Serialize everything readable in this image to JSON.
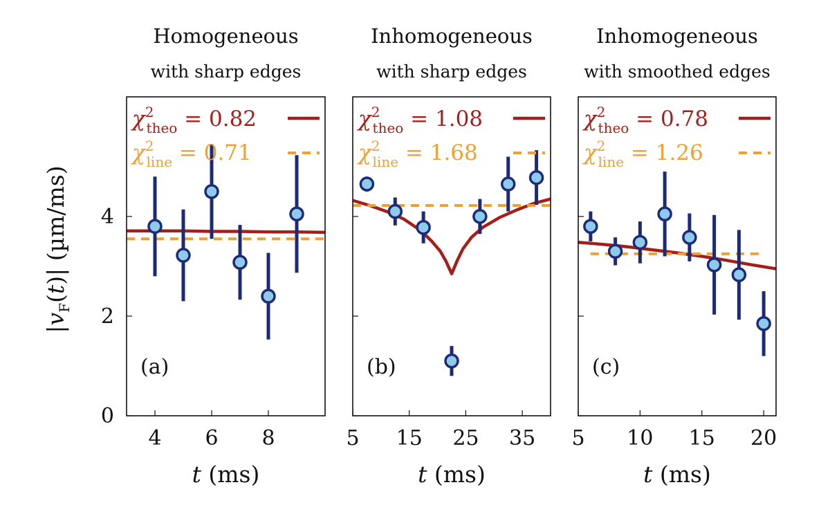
{
  "colors": {
    "theory": "#a51f1a",
    "linear": "#f0a030",
    "marker_fill": "#8ecae9",
    "marker_edge": "#1c2a78",
    "errorbar": "#1c2a78",
    "frame": "#111111"
  },
  "shared": {
    "ylabel": "|v_F(t)| (µm/ms)",
    "ylim": [
      0,
      6.4
    ],
    "yticks": [
      0,
      2,
      4
    ],
    "xlabel": "t (ms)"
  },
  "legend_labels": {
    "theory": "χ²_theo",
    "linear": "χ²_line"
  },
  "chart_data": [
    {
      "type": "scatter",
      "panel_label": "(a)",
      "title": "Homogeneous",
      "subtitle": "with sharp edges",
      "xlabel": "t (ms)",
      "xlim": [
        3,
        10
      ],
      "xticks": [
        4,
        6,
        8
      ],
      "ylim": [
        0,
        6.4
      ],
      "legend": {
        "placement": "top",
        "chi2_theo": "0.82",
        "chi2_line": "0.71"
      },
      "series": [
        {
          "kind": "data",
          "x": [
            4,
            5,
            6,
            7,
            8,
            9
          ],
          "y": [
            3.8,
            3.22,
            4.5,
            3.08,
            2.4,
            4.05
          ],
          "yerr": [
            1.0,
            0.92,
            0.95,
            0.75,
            0.87,
            1.18
          ]
        },
        {
          "kind": "theory",
          "x": [
            3,
            4,
            5,
            6,
            7,
            8,
            9,
            10
          ],
          "y": [
            3.71,
            3.71,
            3.71,
            3.7,
            3.7,
            3.69,
            3.69,
            3.68
          ]
        },
        {
          "kind": "linear",
          "x": [
            3,
            10
          ],
          "y": [
            3.55,
            3.55
          ]
        }
      ]
    },
    {
      "type": "scatter",
      "panel_label": "(b)",
      "title": "Inhomogeneous",
      "subtitle": "with sharp edges",
      "xlabel": "t (ms)",
      "xlim": [
        5,
        40
      ],
      "xticks": [
        5,
        15,
        25,
        35
      ],
      "ylim": [
        0,
        6.4
      ],
      "legend": {
        "placement": "top",
        "chi2_theo": "1.08",
        "chi2_line": "1.68"
      },
      "series": [
        {
          "kind": "data",
          "x": [
            7.5,
            12.5,
            17.5,
            22.5,
            27.5,
            32.5,
            37.5
          ],
          "y": [
            4.65,
            4.1,
            3.78,
            1.1,
            4.0,
            4.65,
            4.78
          ],
          "yerr": [
            0.15,
            0.28,
            0.32,
            0.3,
            0.35,
            0.55,
            0.55
          ]
        },
        {
          "kind": "theory",
          "x": [
            5,
            8,
            11,
            14,
            17,
            19,
            20.5,
            21.5,
            22.5,
            23.5,
            24.5,
            26,
            28,
            31,
            34,
            37,
            40
          ],
          "y": [
            4.32,
            4.22,
            4.1,
            3.95,
            3.72,
            3.5,
            3.3,
            3.1,
            2.85,
            3.12,
            3.35,
            3.58,
            3.78,
            3.98,
            4.13,
            4.26,
            4.35
          ]
        },
        {
          "kind": "linear",
          "x": [
            5,
            40
          ],
          "y": [
            4.22,
            4.22
          ]
        }
      ]
    },
    {
      "type": "scatter",
      "panel_label": "(c)",
      "title": "Inhomogeneous",
      "subtitle": "with smoothed edges",
      "xlabel": "t (ms)",
      "xlim": [
        5,
        21
      ],
      "xticks": [
        5,
        10,
        15,
        20
      ],
      "ylim": [
        0,
        6.4
      ],
      "legend": {
        "placement": "top",
        "chi2_theo": "0.78",
        "chi2_line": "1.26"
      },
      "series": [
        {
          "kind": "data",
          "x": [
            6,
            8,
            10,
            12,
            14,
            16,
            18,
            20
          ],
          "y": [
            3.8,
            3.3,
            3.48,
            4.05,
            3.58,
            3.03,
            2.83,
            1.85
          ],
          "yerr": [
            0.3,
            0.28,
            0.42,
            0.85,
            0.48,
            1.0,
            0.9,
            0.65
          ]
        },
        {
          "kind": "theory",
          "x": [
            5,
            7,
            9,
            11,
            13,
            15,
            17,
            19,
            21
          ],
          "y": [
            3.48,
            3.44,
            3.39,
            3.33,
            3.27,
            3.2,
            3.12,
            3.03,
            2.95
          ]
        },
        {
          "kind": "linear",
          "x": [
            6,
            20
          ],
          "y": [
            3.25,
            3.25
          ]
        }
      ]
    }
  ]
}
